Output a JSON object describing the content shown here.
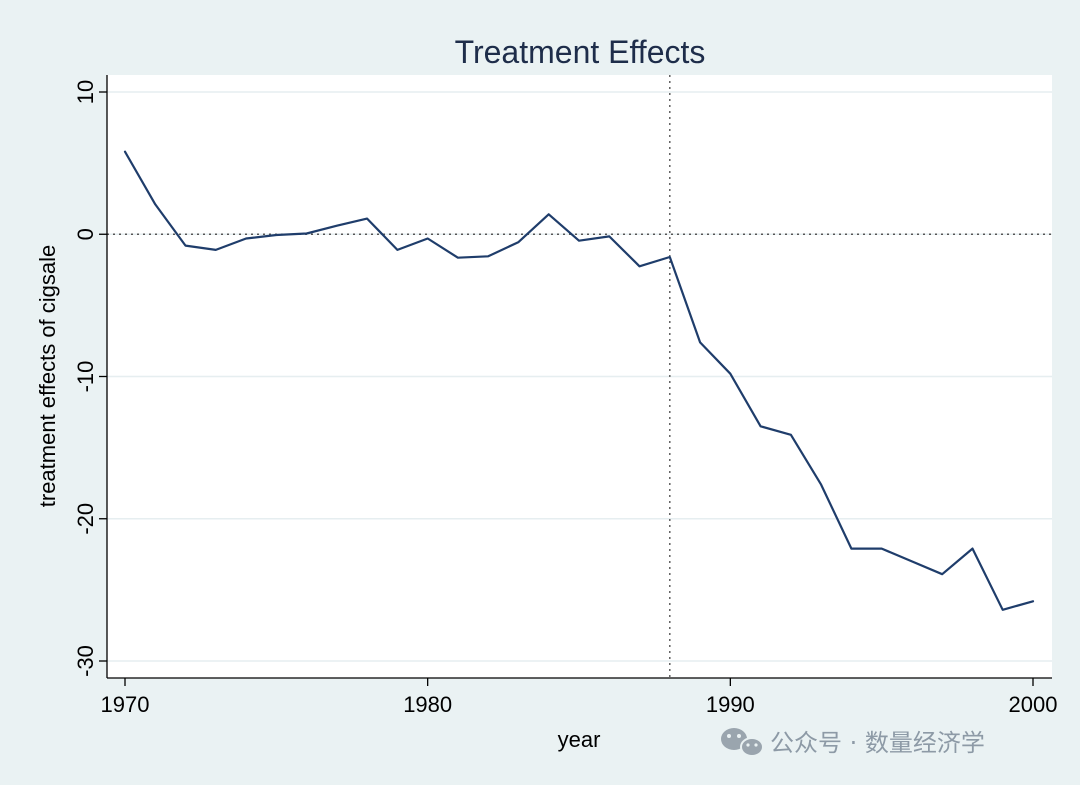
{
  "chart_data": {
    "type": "line",
    "title": "Treatment Effects",
    "xlabel": "year",
    "ylabel": "treatment effects of cigsale",
    "xlim": [
      1970,
      2000
    ],
    "ylim": [
      -30,
      10
    ],
    "x_ticks": [
      1970,
      1980,
      1990,
      2000
    ],
    "y_ticks": [
      10,
      0,
      -10,
      -20,
      -30
    ],
    "vline_x": 1988,
    "hline_y": 0,
    "grid": true,
    "series": [
      {
        "name": "treatment effects of cigsale",
        "color": "#1f3d6b",
        "x": [
          1970,
          1971,
          1972,
          1973,
          1974,
          1975,
          1976,
          1977,
          1978,
          1979,
          1980,
          1981,
          1982,
          1983,
          1984,
          1985,
          1986,
          1987,
          1988,
          1989,
          1990,
          1991,
          1992,
          1993,
          1994,
          1995,
          1996,
          1997,
          1998,
          1999,
          2000
        ],
        "y": [
          5.8,
          2.1,
          -0.8,
          -1.1,
          -0.3,
          -0.05,
          0.05,
          0.6,
          1.1,
          -1.1,
          -0.3,
          -1.65,
          -1.55,
          -0.55,
          1.4,
          -0.45,
          -0.15,
          -2.25,
          -1.6,
          -7.6,
          -9.8,
          -13.5,
          -14.1,
          -17.6,
          -22.1,
          -22.1,
          -23.0,
          -23.9,
          -22.1,
          -26.4,
          -25.8
        ]
      }
    ]
  },
  "watermark": {
    "text": "公众号 · 数量经济学",
    "icon": "wechat-icon"
  },
  "colors": {
    "background": "#eaf2f3",
    "plot_background": "#ffffff",
    "grid": "#e6eef0",
    "line": "#1f3d6b",
    "title": "#1e2d4a"
  }
}
